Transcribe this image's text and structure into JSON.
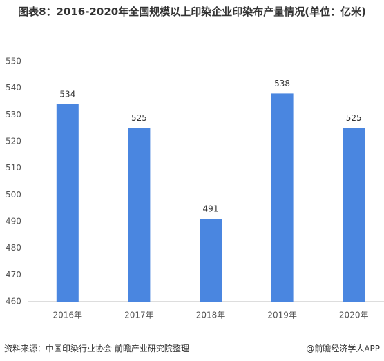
{
  "chart_data": {
    "type": "bar",
    "title": "图表8：2016-2020年全国规模以上印染企业印染布产量情况(单位：亿米)",
    "categories": [
      "2016年",
      "2017年",
      "2018年",
      "2019年",
      "2020年"
    ],
    "values": [
      534,
      525,
      491,
      538,
      525
    ],
    "color": "#4a86e0",
    "ylim": [
      460,
      550
    ],
    "yticks": [
      460,
      470,
      480,
      490,
      500,
      510,
      520,
      530,
      540,
      550
    ],
    "grid": false,
    "source": "资料来源：中国印染行业协会 前瞻产业研究院整理",
    "credit": "@前瞻经济学人APP"
  }
}
